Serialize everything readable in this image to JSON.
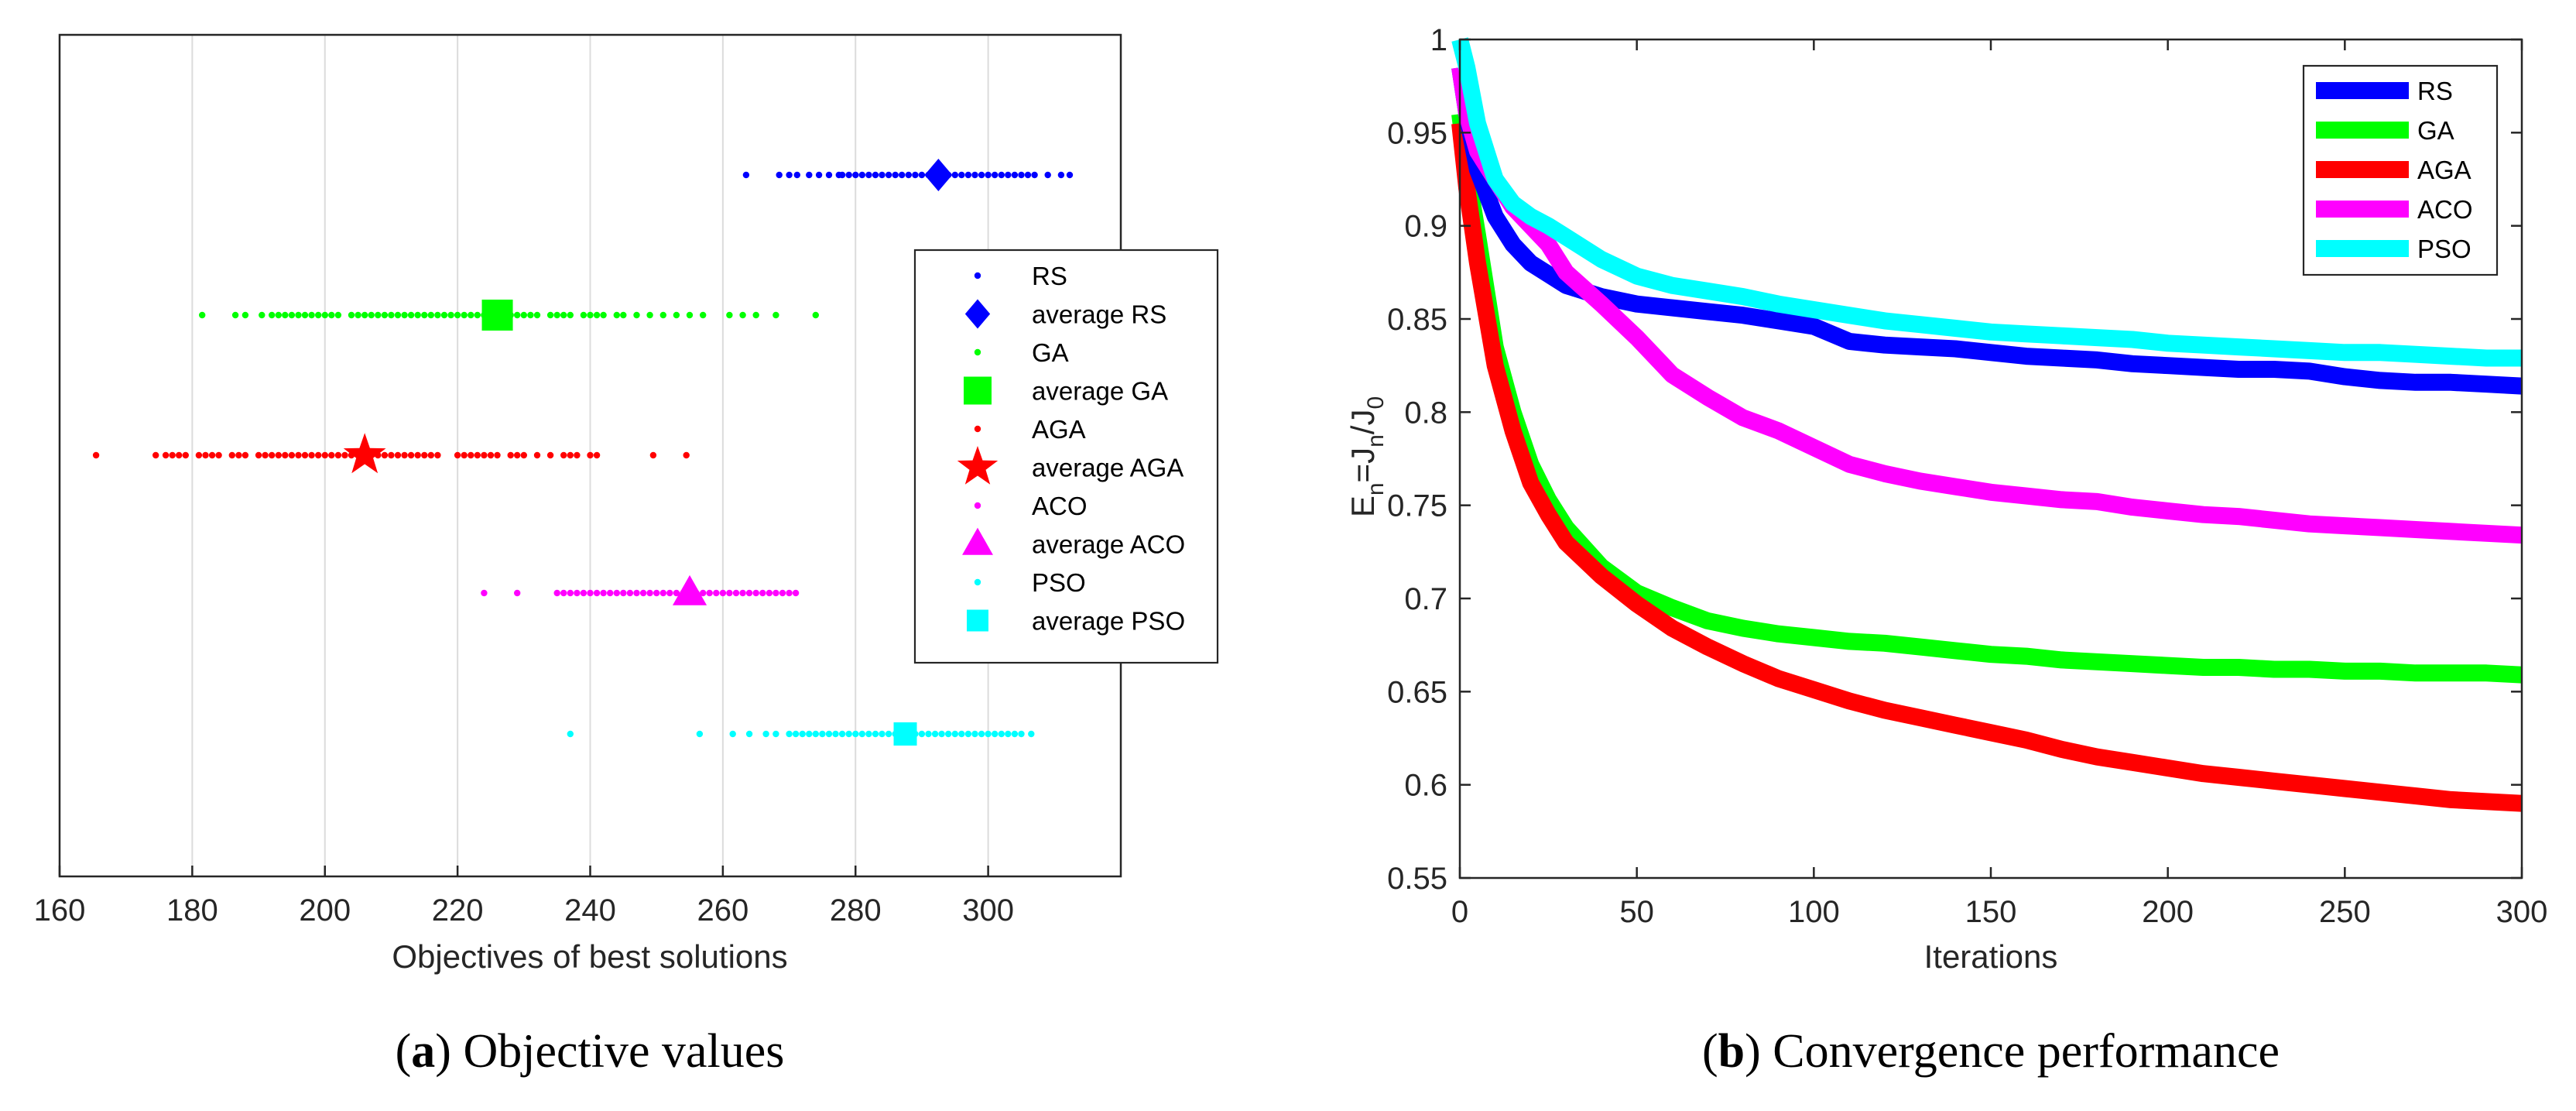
{
  "chart_data": [
    {
      "type": "scatter",
      "panel": "a",
      "caption_letter": "a",
      "caption_text": " Objective values",
      "xlabel": "Objectives of best solutions",
      "ylabel": "",
      "xlim": [
        160,
        320
      ],
      "xticks": [
        "160",
        "180",
        "200",
        "220",
        "240",
        "260",
        "280",
        "300"
      ],
      "grid": "x",
      "legend_position": "right",
      "series": [
        {
          "name": "RS",
          "avg_label": "average RS",
          "color": "#0000ff",
          "marker": "diamond",
          "row": 1,
          "points": [
            263.5,
            268.5,
            270,
            271.2,
            273,
            274.5,
            276,
            277.5,
            278,
            279,
            280,
            281,
            282,
            283,
            284,
            285,
            286,
            287,
            288,
            289,
            290,
            291,
            292,
            293,
            294,
            295,
            296,
            297,
            298,
            299,
            300,
            301,
            302,
            303,
            304,
            305,
            306,
            307,
            309,
            311,
            312.3
          ],
          "average": 292.5
        },
        {
          "name": "GA",
          "avg_label": "average GA",
          "color": "#00ff00",
          "marker": "square",
          "row": 2,
          "points": [
            181.5,
            186.5,
            188,
            190.5,
            192,
            193,
            194,
            195,
            196,
            197,
            198,
            199,
            200,
            201,
            202,
            204,
            205,
            206,
            207,
            208,
            209,
            210,
            211,
            212,
            213,
            214,
            215,
            216,
            217,
            218,
            219,
            220,
            221,
            222,
            223,
            224,
            225,
            226,
            227,
            228,
            229,
            230,
            231,
            232,
            234,
            235,
            236,
            237,
            239,
            240,
            241,
            242,
            244,
            245,
            247,
            249,
            251,
            253,
            255,
            257,
            261,
            263,
            265,
            268,
            274
          ],
          "average": 226
        },
        {
          "name": "AGA",
          "avg_label": "average AGA",
          "color": "#ff0000",
          "marker": "star",
          "row": 3,
          "points": [
            165.5,
            174.5,
            176,
            177,
            178,
            179,
            181,
            182,
            183,
            184,
            186,
            187,
            188,
            190,
            191,
            192,
            193,
            194,
            195,
            196,
            197,
            198,
            199,
            200,
            201,
            202,
            203,
            204,
            205,
            206,
            207,
            208,
            209,
            210,
            211,
            212,
            213,
            214,
            215,
            216,
            217,
            220,
            221,
            222,
            223,
            224,
            225,
            226,
            228,
            229,
            230,
            232,
            234,
            236,
            237,
            238,
            240,
            241,
            249.5,
            254.5
          ],
          "average": 206
        },
        {
          "name": "ACO",
          "avg_label": "average ACO",
          "color": "#ff00ff",
          "marker": "triangle",
          "row": 4,
          "points": [
            224,
            229,
            235,
            236,
            237,
            238,
            239,
            240,
            241,
            242,
            243,
            244,
            245,
            246,
            247,
            248,
            249,
            250,
            251,
            252,
            253,
            254,
            255,
            256,
            257,
            258,
            259,
            260,
            261,
            262,
            263,
            264,
            265,
            266,
            267,
            268,
            269,
            270,
            271
          ],
          "average": 255
        },
        {
          "name": "PSO",
          "avg_label": "average PSO",
          "color": "#00ffff",
          "marker": "square",
          "row": 5,
          "points": [
            237,
            256.5,
            261.5,
            264,
            266.5,
            268,
            270,
            271,
            272,
            273,
            274,
            275,
            276,
            277,
            278,
            279,
            280,
            281,
            282,
            283,
            284,
            285,
            286,
            287,
            288,
            289,
            290,
            291,
            292,
            293,
            294,
            295,
            296,
            297,
            298,
            299,
            300,
            301,
            302,
            303,
            304,
            305,
            306.5
          ],
          "average": 287.5
        }
      ]
    },
    {
      "type": "line",
      "panel": "b",
      "caption_letter": "b",
      "caption_text": " Convergence performance",
      "xlabel": "Iterations",
      "ylabel_main": "E",
      "ylabel_sub_n1": "n",
      "ylabel_eq": "=J",
      "ylabel_sub_n2": "n",
      "ylabel_slash": "/J",
      "ylabel_sub_0": "0",
      "xlim": [
        0,
        300
      ],
      "ylim": [
        0.55,
        1
      ],
      "xticks": [
        "0",
        "50",
        "100",
        "150",
        "200",
        "250",
        "300"
      ],
      "yticks": [
        "0.55",
        "0.6",
        "0.65",
        "0.7",
        "0.75",
        "0.8",
        "0.85",
        "0.9",
        "0.95",
        "1"
      ],
      "legend_position": "top-right",
      "x": [
        0,
        2,
        5,
        10,
        15,
        20,
        25,
        30,
        40,
        50,
        60,
        70,
        80,
        90,
        100,
        110,
        120,
        130,
        140,
        150,
        160,
        170,
        180,
        190,
        200,
        210,
        220,
        230,
        240,
        250,
        260,
        270,
        280,
        290,
        300
      ],
      "series": [
        {
          "name": "RS",
          "color": "#0000ff",
          "values": [
            0.985,
            0.96,
            0.93,
            0.905,
            0.89,
            0.88,
            0.874,
            0.868,
            0.862,
            0.858,
            0.856,
            0.854,
            0.852,
            0.849,
            0.846,
            0.838,
            0.836,
            0.835,
            0.834,
            0.832,
            0.83,
            0.829,
            0.828,
            0.826,
            0.825,
            0.824,
            0.823,
            0.823,
            0.822,
            0.819,
            0.817,
            0.816,
            0.816,
            0.815,
            0.814
          ]
        },
        {
          "name": "GA",
          "color": "#00ff00",
          "values": [
            0.96,
            0.93,
            0.895,
            0.835,
            0.8,
            0.772,
            0.753,
            0.738,
            0.717,
            0.703,
            0.695,
            0.688,
            0.684,
            0.681,
            0.679,
            0.677,
            0.676,
            0.674,
            0.672,
            0.67,
            0.669,
            0.667,
            0.666,
            0.665,
            0.664,
            0.663,
            0.663,
            0.662,
            0.662,
            0.661,
            0.661,
            0.66,
            0.66,
            0.66,
            0.659
          ]
        },
        {
          "name": "AGA",
          "color": "#ff0000",
          "values": [
            0.955,
            0.92,
            0.88,
            0.825,
            0.79,
            0.762,
            0.745,
            0.73,
            0.712,
            0.697,
            0.684,
            0.674,
            0.665,
            0.657,
            0.651,
            0.645,
            0.64,
            0.636,
            0.632,
            0.628,
            0.624,
            0.619,
            0.615,
            0.612,
            0.609,
            0.606,
            0.604,
            0.602,
            0.6,
            0.598,
            0.596,
            0.594,
            0.592,
            0.591,
            0.59
          ]
        },
        {
          "name": "ACO",
          "color": "#ff00ff",
          "values": [
            0.985,
            0.96,
            0.94,
            0.925,
            0.91,
            0.9,
            0.89,
            0.875,
            0.858,
            0.84,
            0.82,
            0.808,
            0.797,
            0.79,
            0.781,
            0.772,
            0.767,
            0.763,
            0.76,
            0.757,
            0.755,
            0.753,
            0.752,
            0.749,
            0.747,
            0.745,
            0.744,
            0.742,
            0.74,
            0.739,
            0.738,
            0.737,
            0.736,
            0.735,
            0.734
          ]
        },
        {
          "name": "PSO",
          "color": "#00ffff",
          "values": [
            1.0,
            0.985,
            0.955,
            0.925,
            0.912,
            0.905,
            0.9,
            0.894,
            0.882,
            0.873,
            0.868,
            0.865,
            0.862,
            0.858,
            0.855,
            0.852,
            0.849,
            0.847,
            0.845,
            0.843,
            0.842,
            0.841,
            0.84,
            0.839,
            0.837,
            0.836,
            0.835,
            0.834,
            0.833,
            0.832,
            0.832,
            0.831,
            0.83,
            0.829,
            0.829
          ]
        }
      ]
    }
  ]
}
